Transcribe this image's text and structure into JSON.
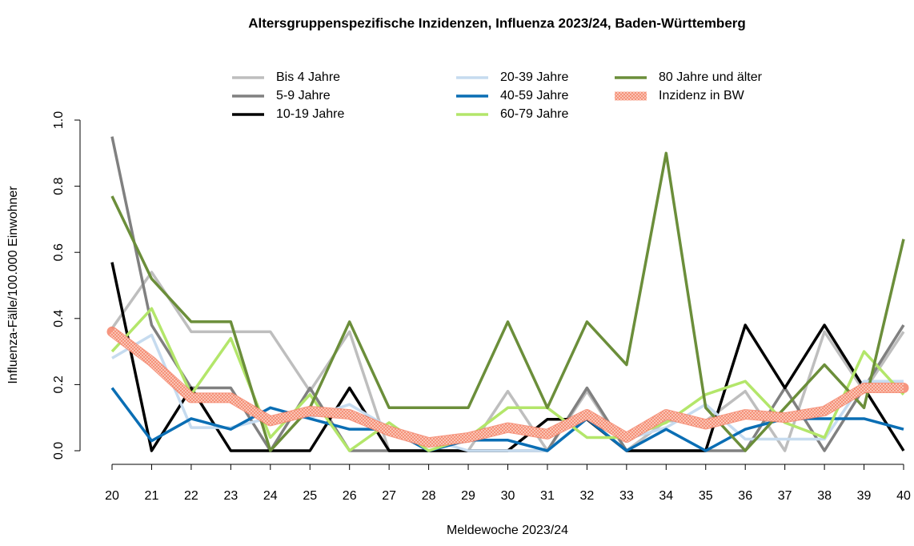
{
  "chart_data": {
    "type": "line",
    "title": "Altersgruppenspezifische Inzidenzen, Influenza 2023/24, Baden-Württemberg",
    "xlabel": "Meldewoche 2023/24",
    "ylabel": "Influenza-Fälle/100.000 Einwohner",
    "x": [
      20,
      21,
      22,
      23,
      24,
      25,
      26,
      27,
      28,
      29,
      30,
      31,
      32,
      33,
      34,
      35,
      36,
      37,
      38,
      39,
      40
    ],
    "xlim": [
      20,
      40
    ],
    "xticks": [
      20,
      21,
      22,
      23,
      24,
      25,
      26,
      27,
      28,
      29,
      30,
      31,
      32,
      33,
      34,
      35,
      36,
      37,
      38,
      39,
      40
    ],
    "ylim": [
      0,
      1
    ],
    "yticks": [
      {
        "value": 0,
        "label": "0.0"
      },
      0.2,
      0.4,
      0.6,
      0.8,
      {
        "value": 1,
        "label": "1.0"
      }
    ],
    "series": [
      {
        "name": "Bis 4 Jahre",
        "color": "#bebebe",
        "values": [
          0.37,
          0.54,
          0.36,
          0.36,
          0.36,
          0.18,
          0.36,
          0,
          0,
          0,
          0.18,
          0,
          0.18,
          0,
          0.09,
          0.09,
          0.18,
          0,
          0.36,
          0.18,
          0.36
        ]
      },
      {
        "name": "5-9 Jahre",
        "color": "#808080",
        "values": [
          0.95,
          0.38,
          0.19,
          0.19,
          0,
          0.19,
          0,
          0,
          0,
          0,
          0,
          0,
          0.19,
          0,
          0,
          0,
          0,
          0.19,
          0,
          0.19,
          0.38
        ]
      },
      {
        "name": "10-19 Jahre",
        "color": "#000000",
        "values": [
          0.57,
          0,
          0.19,
          0,
          0,
          0,
          0.19,
          0,
          0,
          0,
          0,
          0.095,
          0.095,
          0,
          0,
          0,
          0.38,
          0.19,
          0.38,
          0.19,
          0
        ]
      },
      {
        "name": "20-39 Jahre",
        "color": "#c6dbef",
        "values": [
          0.28,
          0.35,
          0.07,
          0.07,
          0.1,
          0.1,
          0.14,
          0.07,
          0.035,
          0,
          0,
          0,
          0.1,
          0.035,
          0.07,
          0.14,
          0.035,
          0.035,
          0.035,
          0.21,
          0.21
        ]
      },
      {
        "name": "40-59 Jahre",
        "color": "#0a6eb4",
        "values": [
          0.19,
          0.03,
          0.097,
          0.065,
          0.13,
          0.097,
          0.065,
          0.065,
          0,
          0.032,
          0.032,
          0,
          0.097,
          0,
          0.065,
          0,
          0.065,
          0.097,
          0.097,
          0.097,
          0.065
        ]
      },
      {
        "name": "60-79 Jahre",
        "color": "#b3e66a",
        "values": [
          0.3,
          0.43,
          0.17,
          0.34,
          0.04,
          0.17,
          0,
          0.085,
          0,
          0.04,
          0.13,
          0.13,
          0.04,
          0.04,
          0.085,
          0.17,
          0.21,
          0.085,
          0.04,
          0.3,
          0.17
        ]
      },
      {
        "name": "80 Jahre und älter",
        "color": "#6b8e3a",
        "values": [
          0.77,
          0.52,
          0.39,
          0.39,
          0,
          0.13,
          0.39,
          0.13,
          0.13,
          0.13,
          0.39,
          0.13,
          0.39,
          0.26,
          0.9,
          0.13,
          0,
          0.13,
          0.26,
          0.13,
          0.64
        ]
      },
      {
        "name": "Inzidenz in BW",
        "color": "#f4846a",
        "values": [
          0.36,
          0.27,
          0.16,
          0.16,
          0.09,
          0.12,
          0.11,
          0.06,
          0.025,
          0.04,
          0.07,
          0.05,
          0.11,
          0.04,
          0.11,
          0.08,
          0.11,
          0.1,
          0.12,
          0.19,
          0.19
        ]
      }
    ]
  }
}
